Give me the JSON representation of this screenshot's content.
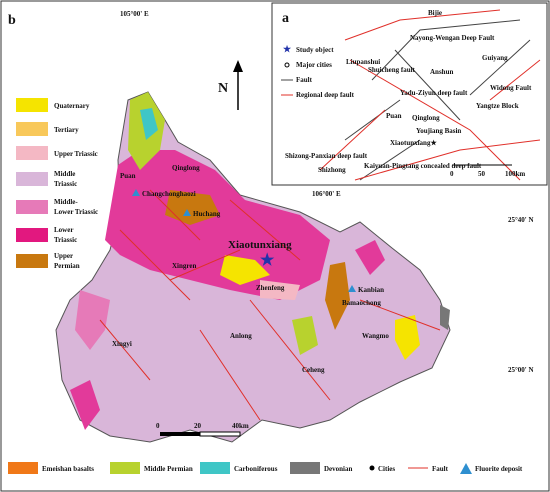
{
  "main_map": {
    "panel_label": "b",
    "north": "N",
    "coordinates": {
      "top": "105°00' E",
      "top_right": "106°00' E",
      "right_upper": "25°40' N",
      "right_lower": "25°00' N"
    },
    "legend_left": [
      [
        "Quaternary"
      ],
      [
        "Tertiary"
      ],
      [
        "Upper Triassic"
      ],
      [
        "Middle",
        "Triassic"
      ],
      [
        "Middle-",
        "Lower Triassic"
      ],
      [
        "Lower",
        "Triassic"
      ],
      [
        "Upper",
        "Permian"
      ]
    ],
    "places": [
      "Qinglong",
      "Puan",
      "Changchonghaozi",
      "Huchang",
      "Xiaotunxiang",
      "Xingren",
      "Zhenfeng",
      "Kanbian",
      "Bamaochong",
      "Wangmo",
      "Anlong",
      "Xingyi",
      "Ceheng"
    ],
    "scale": [
      "0",
      "20",
      "40km"
    ],
    "legend_bottom": [
      "Emeishan basalts",
      "Middle Permian",
      "Carboniferous",
      "Devonian",
      "Cities",
      "Fault",
      "Fluorite deposit"
    ]
  },
  "inset_map": {
    "panel_label": "a",
    "legend": [
      "Study object",
      "Major cities",
      "Fault",
      "Regional deep fault"
    ],
    "labels": [
      "Bijie",
      "Nayong-Wengan Deep Fault",
      "Liupanshui",
      "Shuicheng fault",
      "Anshun",
      "Guiyang",
      "Widong Fault",
      "Yadu-Ziyun deep fault",
      "Puan",
      "Qinglong",
      "Yangtze Block",
      "Youjiang Basin",
      "Xiaotunxiang★",
      "Shizong-Panxian deep fault",
      "Shizhong",
      "Kaiyuan-Pingtang concealed deep fault"
    ],
    "scale": [
      "0",
      "50",
      "100km"
    ]
  }
}
